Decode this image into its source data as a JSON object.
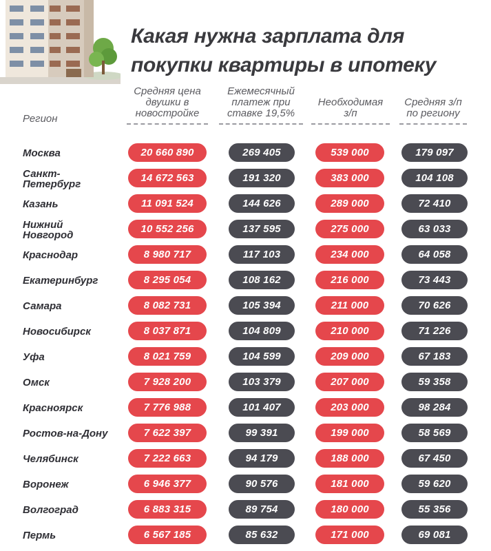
{
  "colors": {
    "price": "#e5474c",
    "payment": "#4b4b52",
    "required": "#e5474c",
    "avg": "#4b4b52"
  },
  "header": {
    "title_line1": "Какая нужна зарплата для",
    "title_line2": "покупки квартиры в ипотеку"
  },
  "chart_data": {
    "type": "table",
    "title": "Какая нужна зарплата для покупки квартиры в ипотеку",
    "columns": [
      "Регион",
      "Средняя цена\nдвушки в\nновостройке",
      "Ежемесячный\nплатеж при\nставке 19,5%",
      "Необходимая\nз/п",
      "Средняя з/п\nпо региону"
    ],
    "rows": [
      [
        "Москва",
        "20 660 890",
        "269 405",
        "539 000",
        "179 097"
      ],
      [
        "Санкт-\nПетербург",
        "14 672 563",
        "191 320",
        "383 000",
        "104 108"
      ],
      [
        "Казань",
        "11 091 524",
        "144 626",
        "289 000",
        "72 410"
      ],
      [
        "Нижний\nНовгород",
        "10 552 256",
        "137 595",
        "275 000",
        "63 033"
      ],
      [
        "Краснодар",
        "8 980 717",
        "117 103",
        "234 000",
        "64 058"
      ],
      [
        "Екатеринбург",
        "8 295 054",
        "108 162",
        "216 000",
        "73 443"
      ],
      [
        "Самара",
        "8 082 731",
        "105 394",
        "211 000",
        "70 626"
      ],
      [
        "Новосибирск",
        "8 037 871",
        "104 809",
        "210 000",
        "71 226"
      ],
      [
        "Уфа",
        "8 021 759",
        "104 599",
        "209 000",
        "67 183"
      ],
      [
        "Омск",
        "7 928 200",
        "103 379",
        "207 000",
        "59 358"
      ],
      [
        "Красноярск",
        "7 776 988",
        "101 407",
        "203 000",
        "98 284"
      ],
      [
        "Ростов-на-Дону",
        "7 622 397",
        "99 391",
        "199 000",
        "58 569"
      ],
      [
        "Челябинск",
        "7 222 663",
        "94 179",
        "188 000",
        "67 450"
      ],
      [
        "Воронеж",
        "6 946 377",
        "90 576",
        "181 000",
        "59 620"
      ],
      [
        "Волгоград",
        "6 883 315",
        "89 754",
        "180 000",
        "55 356"
      ],
      [
        "Пермь",
        "6 567 185",
        "85 632",
        "171 000",
        "69 081"
      ]
    ]
  }
}
